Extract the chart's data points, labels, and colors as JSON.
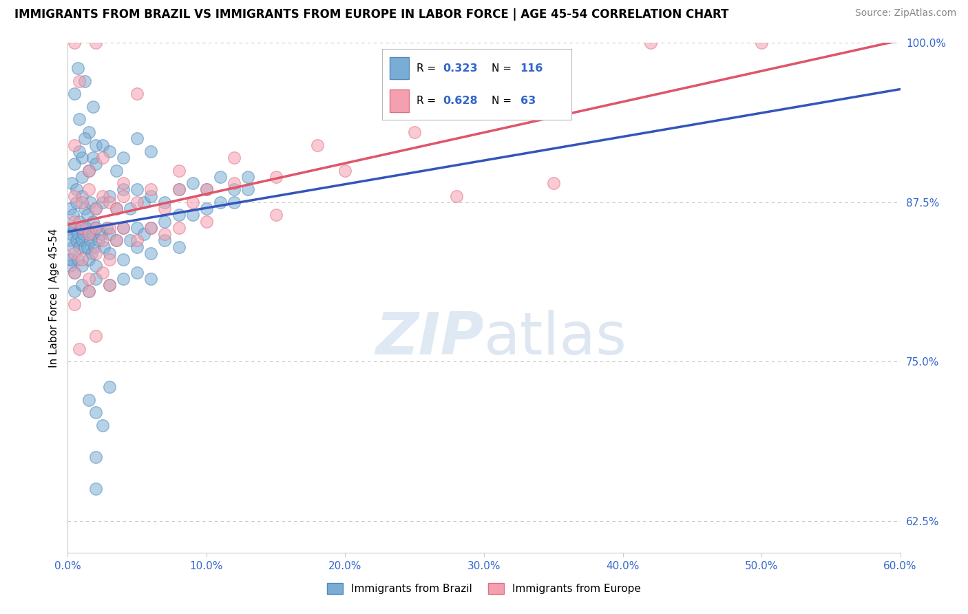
{
  "title": "IMMIGRANTS FROM BRAZIL VS IMMIGRANTS FROM EUROPE IN LABOR FORCE | AGE 45-54 CORRELATION CHART",
  "source": "Source: ZipAtlas.com",
  "ylabel": "In Labor Force | Age 45-54",
  "xlim": [
    0.0,
    60.0
  ],
  "ylim": [
    60.0,
    100.0
  ],
  "brazil_color": "#7aadd4",
  "europe_color": "#f5a0b0",
  "brazil_edge": "#5588bb",
  "europe_edge": "#e07080",
  "brazil_line_color": "#3355bb",
  "europe_line_color": "#e0556a",
  "legend_color": "#3366CC",
  "brazil_R": 0.323,
  "brazil_N": 116,
  "europe_R": 0.628,
  "europe_N": 63,
  "ytick_vals": [
    62.5,
    75.0,
    87.5,
    100.0
  ],
  "xtick_vals": [
    0,
    10,
    20,
    30,
    40,
    50,
    60
  ],
  "brazil_scatter": [
    [
      0.5,
      96.0
    ],
    [
      0.8,
      94.0
    ],
    [
      1.0,
      91.0
    ],
    [
      1.5,
      93.0
    ],
    [
      2.0,
      92.0
    ],
    [
      1.2,
      97.0
    ],
    [
      0.7,
      98.0
    ],
    [
      1.8,
      95.0
    ],
    [
      0.3,
      89.0
    ],
    [
      0.5,
      90.5
    ],
    [
      0.6,
      88.5
    ],
    [
      0.8,
      91.5
    ],
    [
      1.0,
      89.5
    ],
    [
      1.2,
      92.5
    ],
    [
      1.5,
      90.0
    ],
    [
      1.8,
      91.0
    ],
    [
      2.0,
      90.5
    ],
    [
      2.5,
      92.0
    ],
    [
      3.0,
      91.5
    ],
    [
      3.5,
      90.0
    ],
    [
      4.0,
      91.0
    ],
    [
      5.0,
      92.5
    ],
    [
      6.0,
      91.5
    ],
    [
      0.2,
      87.0
    ],
    [
      0.4,
      86.5
    ],
    [
      0.6,
      87.5
    ],
    [
      0.8,
      86.0
    ],
    [
      1.0,
      88.0
    ],
    [
      1.2,
      87.0
    ],
    [
      1.4,
      86.5
    ],
    [
      1.6,
      87.5
    ],
    [
      1.8,
      86.0
    ],
    [
      2.0,
      87.0
    ],
    [
      2.5,
      87.5
    ],
    [
      3.0,
      88.0
    ],
    [
      3.5,
      87.0
    ],
    [
      4.0,
      88.5
    ],
    [
      4.5,
      87.0
    ],
    [
      5.0,
      88.5
    ],
    [
      5.5,
      87.5
    ],
    [
      6.0,
      88.0
    ],
    [
      7.0,
      87.5
    ],
    [
      8.0,
      88.5
    ],
    [
      9.0,
      89.0
    ],
    [
      10.0,
      88.5
    ],
    [
      11.0,
      89.5
    ],
    [
      12.0,
      88.5
    ],
    [
      13.0,
      89.5
    ],
    [
      0.1,
      85.5
    ],
    [
      0.2,
      84.5
    ],
    [
      0.3,
      85.0
    ],
    [
      0.4,
      84.0
    ],
    [
      0.5,
      85.5
    ],
    [
      0.6,
      84.5
    ],
    [
      0.7,
      85.0
    ],
    [
      0.8,
      84.0
    ],
    [
      0.9,
      85.5
    ],
    [
      1.0,
      84.5
    ],
    [
      1.1,
      85.0
    ],
    [
      1.2,
      84.0
    ],
    [
      1.3,
      85.5
    ],
    [
      1.4,
      84.0
    ],
    [
      1.5,
      85.0
    ],
    [
      1.6,
      84.5
    ],
    [
      1.7,
      83.5
    ],
    [
      1.8,
      85.0
    ],
    [
      1.9,
      84.0
    ],
    [
      2.0,
      85.5
    ],
    [
      2.2,
      84.5
    ],
    [
      2.4,
      85.0
    ],
    [
      2.6,
      84.0
    ],
    [
      2.8,
      85.5
    ],
    [
      3.0,
      85.0
    ],
    [
      3.5,
      84.5
    ],
    [
      4.0,
      85.5
    ],
    [
      4.5,
      84.5
    ],
    [
      5.0,
      85.5
    ],
    [
      5.5,
      85.0
    ],
    [
      6.0,
      85.5
    ],
    [
      7.0,
      86.0
    ],
    [
      8.0,
      86.5
    ],
    [
      9.0,
      86.5
    ],
    [
      10.0,
      87.0
    ],
    [
      11.0,
      87.5
    ],
    [
      12.0,
      87.5
    ],
    [
      13.0,
      88.5
    ],
    [
      0.1,
      83.0
    ],
    [
      0.2,
      82.5
    ],
    [
      0.3,
      83.0
    ],
    [
      0.5,
      82.0
    ],
    [
      0.7,
      83.0
    ],
    [
      1.0,
      82.5
    ],
    [
      1.5,
      83.0
    ],
    [
      2.0,
      82.5
    ],
    [
      3.0,
      83.5
    ],
    [
      4.0,
      83.0
    ],
    [
      5.0,
      84.0
    ],
    [
      6.0,
      83.5
    ],
    [
      7.0,
      84.5
    ],
    [
      8.0,
      84.0
    ],
    [
      0.5,
      80.5
    ],
    [
      1.0,
      81.0
    ],
    [
      1.5,
      80.5
    ],
    [
      2.0,
      81.5
    ],
    [
      3.0,
      81.0
    ],
    [
      4.0,
      81.5
    ],
    [
      5.0,
      82.0
    ],
    [
      6.0,
      81.5
    ],
    [
      1.5,
      72.0
    ],
    [
      2.0,
      71.0
    ],
    [
      2.5,
      70.0
    ],
    [
      3.0,
      73.0
    ],
    [
      2.0,
      67.5
    ],
    [
      2.0,
      65.0
    ]
  ],
  "europe_scatter": [
    [
      0.5,
      100.0
    ],
    [
      2.0,
      100.0
    ],
    [
      42.0,
      100.0
    ],
    [
      50.0,
      100.0
    ],
    [
      0.8,
      97.0
    ],
    [
      5.0,
      96.0
    ],
    [
      0.5,
      92.0
    ],
    [
      1.5,
      90.0
    ],
    [
      2.5,
      91.0
    ],
    [
      4.0,
      89.0
    ],
    [
      8.0,
      90.0
    ],
    [
      12.0,
      91.0
    ],
    [
      18.0,
      92.0
    ],
    [
      25.0,
      93.0
    ],
    [
      0.5,
      88.0
    ],
    [
      1.0,
      87.5
    ],
    [
      1.5,
      88.5
    ],
    [
      2.0,
      87.0
    ],
    [
      2.5,
      88.0
    ],
    [
      3.0,
      87.5
    ],
    [
      3.5,
      87.0
    ],
    [
      4.0,
      88.0
    ],
    [
      5.0,
      87.5
    ],
    [
      6.0,
      88.5
    ],
    [
      7.0,
      87.0
    ],
    [
      8.0,
      88.5
    ],
    [
      9.0,
      87.5
    ],
    [
      10.0,
      88.5
    ],
    [
      12.0,
      89.0
    ],
    [
      15.0,
      89.5
    ],
    [
      20.0,
      90.0
    ],
    [
      28.0,
      88.0
    ],
    [
      35.0,
      89.0
    ],
    [
      0.5,
      86.0
    ],
    [
      1.0,
      85.5
    ],
    [
      1.5,
      85.0
    ],
    [
      2.0,
      85.5
    ],
    [
      2.5,
      84.5
    ],
    [
      3.0,
      85.5
    ],
    [
      3.5,
      84.5
    ],
    [
      4.0,
      85.5
    ],
    [
      5.0,
      84.5
    ],
    [
      6.0,
      85.5
    ],
    [
      7.0,
      85.0
    ],
    [
      8.0,
      85.5
    ],
    [
      10.0,
      86.0
    ],
    [
      15.0,
      86.5
    ],
    [
      0.5,
      83.5
    ],
    [
      1.0,
      83.0
    ],
    [
      2.0,
      83.5
    ],
    [
      3.0,
      83.0
    ],
    [
      0.5,
      82.0
    ],
    [
      1.5,
      81.5
    ],
    [
      2.5,
      82.0
    ],
    [
      0.5,
      79.5
    ],
    [
      1.5,
      80.5
    ],
    [
      3.0,
      81.0
    ],
    [
      0.8,
      76.0
    ],
    [
      2.0,
      77.0
    ]
  ]
}
